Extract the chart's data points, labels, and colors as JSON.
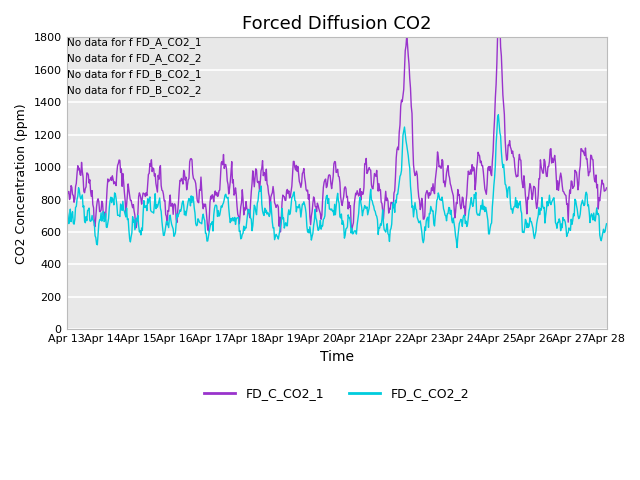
{
  "title": "Forced Diffusion CO2",
  "xlabel": "Time",
  "ylabel": "CO2 Concentration (ppm)",
  "ylim": [
    0,
    1800
  ],
  "color_line1": "#9933cc",
  "color_line2": "#00ccdd",
  "legend_labels": [
    "FD_C_CO2_1",
    "FD_C_CO2_2"
  ],
  "annotations": [
    "No data for f FD_A_CO2_1",
    "No data for f FD_A_CO2_2",
    "No data for f FD_B_CO2_1",
    "No data for f FD_B_CO2_2"
  ],
  "xtick_labels": [
    "Apr 13",
    "Apr 14",
    "Apr 15",
    "Apr 16",
    "Apr 17",
    "Apr 18",
    "Apr 19",
    "Apr 20",
    "Apr 21",
    "Apr 22",
    "Apr 23",
    "Apr 24",
    "Apr 25",
    "Apr 26",
    "Apr 27",
    "Apr 28"
  ],
  "bg_color": "#e8e8e8",
  "fig_bg": "#ffffff",
  "linewidth": 1.0,
  "title_fontsize": 13,
  "ylabel_fontsize": 9,
  "xlabel_fontsize": 10,
  "tick_fontsize": 8,
  "annot_fontsize": 7.5,
  "legend_fontsize": 9
}
